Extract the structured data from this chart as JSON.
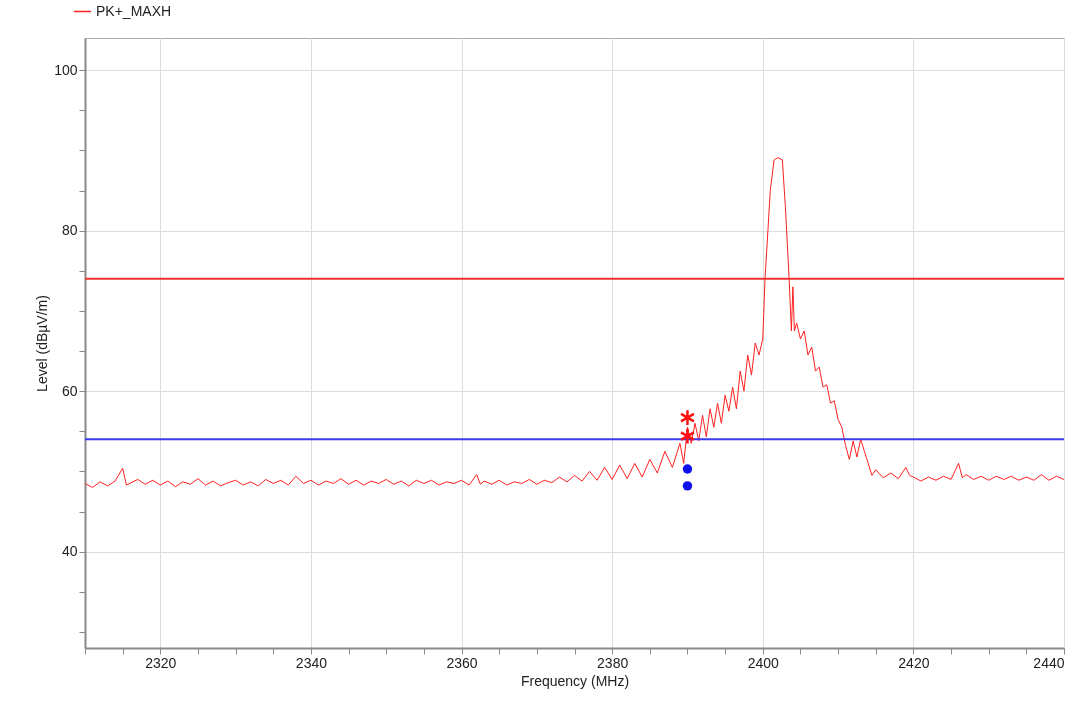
{
  "chart_data": {
    "type": "line",
    "xlabel": "Frequency (MHz)",
    "ylabel": "Level (dBµV/m)",
    "legend": "top left",
    "grid": true,
    "xlim": [
      2310,
      2440
    ],
    "ylim": [
      28,
      104
    ],
    "xticks": [
      {
        "value": 2310,
        "label": null
      },
      {
        "value": 2315,
        "label": null
      },
      2320,
      {
        "value": 2325,
        "label": null
      },
      {
        "value": 2330,
        "label": null
      },
      {
        "value": 2335,
        "label": null
      },
      2340,
      {
        "value": 2345,
        "label": null
      },
      {
        "value": 2350,
        "label": null
      },
      {
        "value": 2355,
        "label": null
      },
      2360,
      {
        "value": 2365,
        "label": null
      },
      {
        "value": 2370,
        "label": null
      },
      {
        "value": 2375,
        "label": null
      },
      2380,
      {
        "value": 2385,
        "label": null
      },
      {
        "value": 2390,
        "label": null
      },
      {
        "value": 2395,
        "label": null
      },
      2400,
      {
        "value": 2405,
        "label": null
      },
      {
        "value": 2410,
        "label": null
      },
      {
        "value": 2415,
        "label": null
      },
      2420,
      {
        "value": 2425,
        "label": null
      },
      {
        "value": 2430,
        "label": null
      },
      {
        "value": 2435,
        "label": null
      },
      2440
    ],
    "yticks": [
      {
        "value": 30,
        "label": null
      },
      {
        "value": 35,
        "label": null
      },
      40,
      {
        "value": 45,
        "label": null
      },
      {
        "value": 50,
        "label": null
      },
      {
        "value": 55,
        "label": null
      },
      60,
      {
        "value": 65,
        "label": null
      },
      {
        "value": 70,
        "label": null
      },
      {
        "value": 75,
        "label": null
      },
      80,
      {
        "value": 85,
        "label": null
      },
      {
        "value": 90,
        "label": null
      },
      {
        "value": 95,
        "label": null
      },
      100
    ],
    "ref_lines": [
      {
        "axis": "y",
        "value": 74,
        "color": "#ee3030"
      },
      {
        "axis": "y",
        "value": 54,
        "color": "#3a3aee"
      }
    ],
    "series": [
      {
        "name": "PK+_MAXH",
        "color": "#ff2020",
        "marker": "none",
        "x": [
          2310,
          2311,
          2312,
          2313,
          2314,
          2315,
          2315.5,
          2317,
          2318,
          2319,
          2320,
          2321,
          2322,
          2323,
          2324,
          2325,
          2326,
          2327,
          2328,
          2329,
          2330,
          2331,
          2332,
          2333,
          2334,
          2335,
          2336,
          2337,
          2338,
          2339,
          2340,
          2341,
          2342,
          2343,
          2344,
          2345,
          2346,
          2347,
          2348,
          2349,
          2350,
          2351,
          2352,
          2353,
          2354,
          2355,
          2356,
          2357,
          2358,
          2359,
          2360,
          2361,
          2362,
          2362.5,
          2363,
          2364,
          2365,
          2366,
          2367,
          2368,
          2369,
          2370,
          2371,
          2372,
          2373,
          2374,
          2375,
          2376,
          2377,
          2378,
          2379,
          2380,
          2381,
          2382,
          2383,
          2384,
          2385,
          2386,
          2387,
          2388,
          2389,
          2389.5,
          2390,
          2390.5,
          2391,
          2391.5,
          2392,
          2392.5,
          2393,
          2393.5,
          2394,
          2394.5,
          2395,
          2395.5,
          2396,
          2396.5,
          2397,
          2397.5,
          2398,
          2398.5,
          2399,
          2399.5,
          2400,
          2400.3,
          2401,
          2401.5,
          2402,
          2402.6,
          2403,
          2403.5,
          2403.8,
          2404,
          2404.2,
          2404.5,
          2405,
          2405.5,
          2406,
          2406.5,
          2407,
          2407.5,
          2408,
          2408.5,
          2409,
          2409.5,
          2410,
          2410.5,
          2411,
          2411.5,
          2412,
          2412.5,
          2413,
          2413.5,
          2414,
          2414.5,
          2415,
          2416,
          2417,
          2418,
          2419,
          2419.5,
          2420,
          2421,
          2422,
          2423,
          2424,
          2425,
          2426,
          2426.5,
          2427,
          2428,
          2429,
          2430,
          2431,
          2432,
          2433,
          2434,
          2435,
          2436,
          2437,
          2438,
          2439,
          2440
        ],
        "values": [
          48.5,
          48.0,
          48.7,
          48.2,
          48.8,
          50.4,
          48.3,
          49.0,
          48.4,
          48.9,
          48.3,
          48.8,
          48.1,
          48.7,
          48.4,
          49.1,
          48.3,
          48.8,
          48.2,
          48.6,
          48.9,
          48.3,
          48.7,
          48.2,
          49.0,
          48.5,
          48.9,
          48.3,
          49.4,
          48.5,
          48.9,
          48.3,
          48.8,
          48.5,
          49.1,
          48.4,
          48.9,
          48.3,
          48.8,
          48.5,
          49.0,
          48.4,
          48.8,
          48.2,
          48.9,
          48.5,
          48.9,
          48.3,
          48.7,
          48.5,
          48.9,
          48.3,
          49.6,
          48.4,
          48.8,
          48.4,
          48.9,
          48.3,
          48.7,
          48.5,
          49.0,
          48.4,
          48.9,
          48.6,
          49.3,
          48.7,
          49.5,
          48.8,
          50.0,
          48.9,
          50.5,
          49.0,
          50.8,
          49.1,
          51.0,
          49.3,
          51.5,
          49.8,
          52.5,
          50.5,
          53.5,
          51.0,
          55.5,
          53.5,
          56.0,
          53.8,
          57.0,
          54.3,
          57.8,
          55.5,
          58.5,
          56.0,
          59.5,
          57.5,
          60.5,
          57.8,
          62.5,
          60.0,
          64.5,
          62.0,
          66.0,
          64.5,
          66.5,
          74.0,
          85.0,
          88.8,
          89.1,
          88.8,
          83.0,
          74.0,
          67.5,
          73.0,
          67.5,
          68.5,
          66.5,
          67.5,
          64.5,
          65.5,
          62.5,
          63.0,
          60.5,
          60.8,
          58.5,
          58.8,
          56.5,
          55.5,
          53.2,
          51.5,
          53.8,
          51.8,
          54.0,
          52.5,
          51.0,
          49.5,
          50.2,
          49.2,
          49.8,
          49.1,
          50.5,
          49.5,
          49.3,
          48.8,
          49.3,
          48.9,
          49.4,
          49.0,
          51.0,
          49.2,
          49.6,
          49.0,
          49.4,
          48.9,
          49.4,
          49.0,
          49.4,
          48.9,
          49.3,
          48.9,
          49.6,
          48.9,
          49.4,
          49.0
        ]
      },
      {
        "color": "#ff1010",
        "type": "scatter",
        "marker": "cross",
        "x": [
          2390,
          2390
        ],
        "values": [
          56.7,
          54.4
        ]
      },
      {
        "color": "#1010ee",
        "type": "scatter",
        "marker": "circle",
        "x": [
          2390,
          2390
        ],
        "values": [
          50.3,
          48.2
        ]
      }
    ]
  }
}
